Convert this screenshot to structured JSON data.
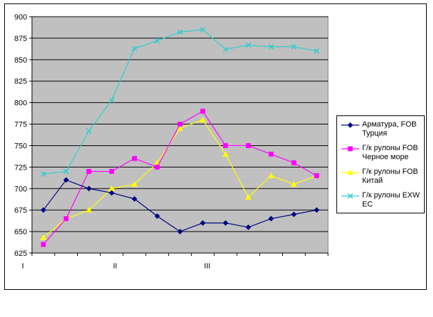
{
  "chart_data": {
    "type": "line",
    "title": "",
    "xlabel": "",
    "ylabel": "",
    "ylim": [
      625,
      900
    ],
    "yticks": [
      625,
      650,
      675,
      700,
      725,
      750,
      775,
      800,
      825,
      850,
      875,
      900
    ],
    "x_tick_labels": [
      {
        "index": 0,
        "label": "I"
      },
      {
        "index": 4,
        "label": "II"
      },
      {
        "index": 8,
        "label": "III"
      }
    ],
    "grid": "horizontal",
    "plot_background": "#c0c0c0",
    "legend_position": "right",
    "series": [
      {
        "name": "Арматура, FOB Турция",
        "color": "#000080",
        "marker": "diamond",
        "values": [
          675,
          710,
          700,
          695,
          688,
          668,
          650,
          660,
          660,
          655,
          665,
          670,
          675
        ]
      },
      {
        "name": "Г/к рулоны FOB Черное море",
        "color": "#ff00ff",
        "marker": "square",
        "values": [
          635,
          665,
          720,
          720,
          735,
          725,
          775,
          790,
          750,
          750,
          740,
          730,
          715
        ]
      },
      {
        "name": "Г/к рулоны FOB Китай",
        "color": "#ffff00",
        "marker": "triangle",
        "values": [
          643,
          665,
          675,
          700,
          705,
          730,
          770,
          780,
          740,
          690,
          715,
          705,
          715
        ]
      },
      {
        "name": "Г/к рулоны EXW ЕС",
        "color": "#33cccc",
        "marker": "x",
        "values": [
          717,
          720,
          767,
          803,
          863,
          872,
          882,
          885,
          862,
          867,
          865,
          865,
          860
        ]
      }
    ]
  }
}
